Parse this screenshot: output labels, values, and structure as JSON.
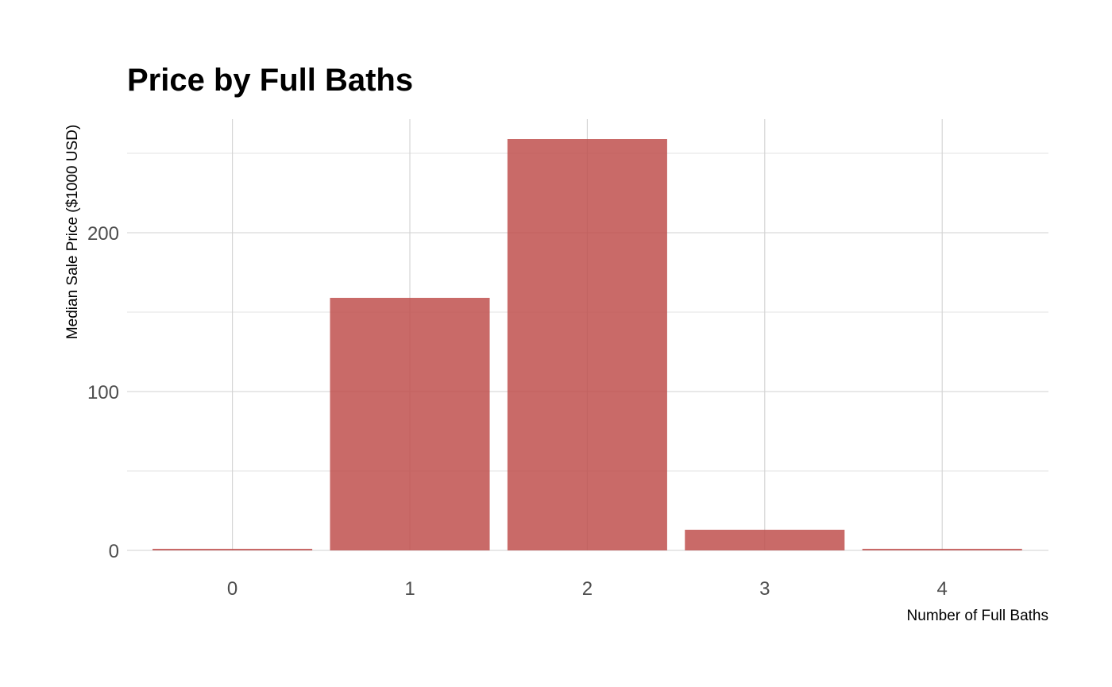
{
  "chart_data": {
    "type": "bar",
    "title": "Price by Full Baths",
    "xlabel": "Number of Full Baths",
    "ylabel": "Median Sale Price ($1000 USD)",
    "categories": [
      "0",
      "1",
      "2",
      "3",
      "4"
    ],
    "values": [
      1,
      159,
      259,
      13,
      1
    ],
    "ylim": [
      0,
      270
    ],
    "y_ticks": [
      0,
      100,
      200
    ],
    "y_tick_labels": [
      "0",
      "100",
      "200"
    ],
    "y_minor_ticks": [
      50,
      150,
      250
    ],
    "grid": true,
    "bar_color": "#c0504d"
  }
}
